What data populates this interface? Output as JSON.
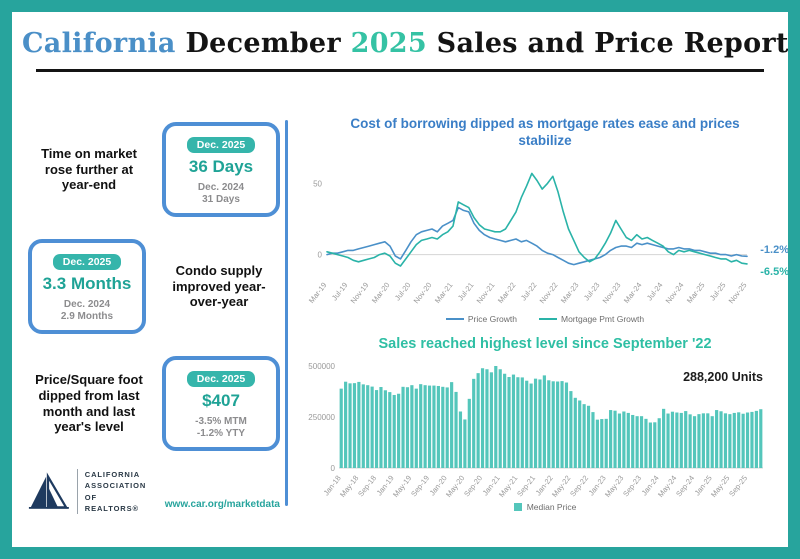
{
  "title": {
    "part1": "California",
    "part2": "December",
    "part3": "2025",
    "part4": "Sales and Price Report"
  },
  "colors": {
    "border_teal": "#27A49D",
    "accent_blue": "#4A8FC7",
    "accent_teal": "#35C2A4",
    "card_border_blue": "#4E8FD5",
    "pill_teal": "#35B5AB",
    "stat_value_teal": "#1FA396",
    "muted_gray": "#8C8C8E",
    "line_blue": "#4A90C8",
    "line_teal": "#2AB3A8",
    "bar_teal": "#54C6BB",
    "logo_navy": "#1E3A5F"
  },
  "stats": [
    {
      "description": "Time on market rose further at year-end",
      "current_label": "Dec. 2025",
      "current_value": "36 Days",
      "prior_line1": "Dec. 2024",
      "prior_line2": "31 Days"
    },
    {
      "description": "Condo supply improved year-over-year",
      "current_label": "Dec. 2025",
      "current_value": "3.3 Months",
      "prior_line1": "Dec. 2024",
      "prior_line2": "2.9 Months"
    },
    {
      "description": "Price/Square foot dipped from last month and last year's level",
      "current_label": "Dec. 2025",
      "current_value": "$407",
      "prior_line1": "-3.5% MTM",
      "prior_line2": "-1.2% YTY"
    }
  ],
  "footer": {
    "org_line1": "CALIFORNIA",
    "org_line2": "ASSOCIATION",
    "org_line3": "OF REALTORS®",
    "url": "www.car.org/marketdata"
  },
  "chart_data": [
    {
      "type": "line",
      "title": "Cost of borrowing dipped as mortgage rates ease and prices stabilize",
      "x_start": "Mar-19",
      "x_interval": "monthly",
      "x_tick_labels": [
        "Mar-19",
        "Jul-19",
        "Nov-19",
        "Mar-20",
        "Jul-20",
        "Nov-20",
        "Mar-21",
        "Jul-21",
        "Nov-21",
        "Mar-22",
        "Jul-22",
        "Nov-22",
        "Mar-23",
        "Jul-23",
        "Nov-23",
        "Mar-24",
        "Jul-24",
        "Nov-24",
        "Mar-25",
        "Jul-25",
        "Nov-25"
      ],
      "ylim": [
        -15,
        65
      ],
      "yticks": [
        0,
        50
      ],
      "legend_position": "bottom",
      "series": [
        {
          "name": "Price Growth",
          "color": "#4A90C8",
          "end_label": "-1.2%",
          "values": [
            0,
            1,
            1,
            2,
            3,
            3,
            4,
            5,
            6,
            7,
            8,
            9,
            6,
            -1,
            -3,
            3,
            9,
            14,
            16,
            17,
            18,
            16,
            20,
            22,
            24,
            33,
            31,
            30,
            22,
            17,
            14,
            12,
            11,
            10,
            9,
            10,
            11,
            9,
            10,
            8,
            6,
            3,
            1,
            0,
            -2,
            -4,
            -6,
            -7,
            -6,
            -5,
            -4,
            -3,
            -2,
            0,
            3,
            5,
            6,
            6,
            5,
            8,
            7,
            8,
            7,
            6,
            5,
            4,
            4,
            5,
            4,
            4,
            3,
            3,
            2,
            1,
            1,
            0,
            0,
            -1,
            0,
            -1,
            -1.2
          ]
        },
        {
          "name": "Mortgage Pmt Growth",
          "color": "#2AB3A8",
          "end_label": "-6.5%",
          "values": [
            2,
            1,
            0,
            -1,
            -2,
            -4,
            -5,
            -4,
            -3,
            -2,
            0,
            1,
            -1,
            -6,
            -8,
            -3,
            2,
            7,
            10,
            11,
            12,
            11,
            14,
            16,
            20,
            37,
            35,
            33,
            26,
            21,
            18,
            17,
            16,
            16,
            18,
            24,
            30,
            40,
            48,
            57,
            52,
            46,
            50,
            55,
            44,
            30,
            18,
            10,
            2,
            -2,
            -5,
            -3,
            2,
            8,
            15,
            24,
            18,
            12,
            10,
            14,
            11,
            12,
            10,
            8,
            6,
            2,
            0,
            3,
            2,
            3,
            2,
            1,
            0,
            -1,
            -2,
            -3,
            -3,
            -5,
            -4,
            -6,
            -6.5
          ]
        }
      ]
    },
    {
      "type": "bar",
      "title": "Sales reached highest level since September '22",
      "x_start": "Jan-18",
      "x_interval": "monthly",
      "x_tick_labels": [
        "Jan-18",
        "May-18",
        "Sep-18",
        "Jan-19",
        "May-19",
        "Sep-19",
        "Jan-20",
        "May-20",
        "Sep-20",
        "Jan-21",
        "May-21",
        "Sep-21",
        "Jan-22",
        "May-22",
        "Sep-22",
        "Jan-23",
        "May-23",
        "Sep-23",
        "Jan-24",
        "May-24",
        "Sep-24",
        "Jan-25",
        "May-25",
        "Sep-25"
      ],
      "ylim": [
        0,
        500000
      ],
      "yticks": [
        0,
        250000,
        500000
      ],
      "annotation": "288,200 Units",
      "bar_color": "#54C6BB",
      "legend": [
        {
          "label": "Median Price",
          "color": "#54C6BB"
        }
      ],
      "values": [
        389000,
        423000,
        415000,
        416000,
        422000,
        410000,
        406000,
        399000,
        382000,
        397000,
        381000,
        372000,
        358000,
        364000,
        398000,
        396000,
        406000,
        389000,
        411000,
        406000,
        404000,
        404000,
        402000,
        398000,
        395000,
        421000,
        373000,
        277000,
        238000,
        339000,
        437000,
        465000,
        489000,
        484000,
        469000,
        500000,
        484000,
        462000,
        446000,
        458000,
        445000,
        444000,
        428000,
        414000,
        438000,
        434000,
        454000,
        430000,
        425000,
        424000,
        426000,
        419000,
        377000,
        344000,
        331000,
        313000,
        305000,
        274000,
        237000,
        240000,
        241000,
        284000,
        281000,
        267000,
        277000,
        270000,
        260000,
        254000,
        254000,
        241000,
        223000,
        224000,
        244000,
        290000,
        267000,
        276000,
        272000,
        270000,
        279000,
        263000,
        254000,
        264000,
        268000,
        268000,
        254000,
        284000,
        278000,
        268000,
        264000,
        270000,
        273000,
        266000,
        272000,
        275000,
        280000,
        288200
      ]
    }
  ]
}
